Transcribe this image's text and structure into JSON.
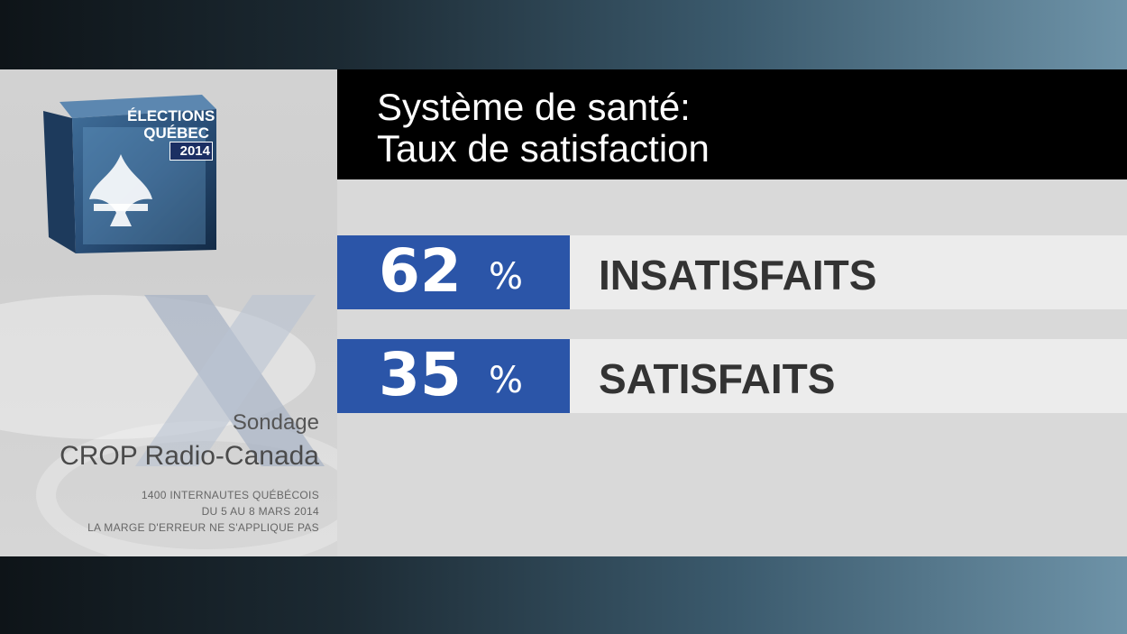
{
  "logo": {
    "line1": "ÉLECTIONS",
    "line2": "QUÉBEC",
    "year": "2014"
  },
  "credit": {
    "line1": "Sondage",
    "line2": "CROP Radio-Canada",
    "fine1": "1400 INTERNAUTES QUÉBÉCOIS",
    "fine2": "DU 5 AU 8 MARS 2014",
    "fine3": "LA MARGE D'ERREUR NE S'APPLIQUE PAS"
  },
  "title": {
    "line1": "Système de santé:",
    "line2": "Taux de satisfaction"
  },
  "results": [
    {
      "value": "62",
      "unit": "%",
      "label": "INSATISFAITS"
    },
    {
      "value": "35",
      "unit": "%",
      "label": "SATISFAITS"
    }
  ],
  "colors": {
    "accent_blue": "#2b55a8",
    "title_bg": "#000000",
    "row_bg": "#ececec"
  }
}
